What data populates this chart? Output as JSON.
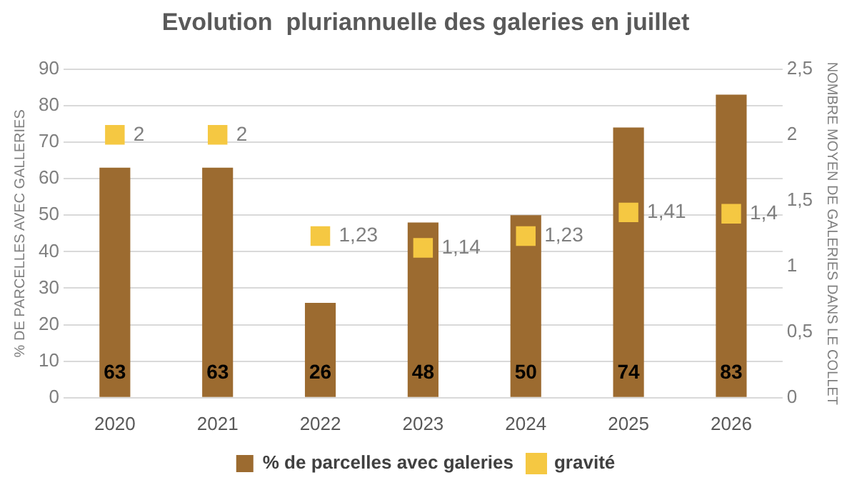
{
  "chart_data": {
    "type": "bar",
    "title": "Evolution  pluriannuelle des galeries en juillet",
    "ylabel": "% DE PARCELLES AVEC GALLERIES",
    "y2label": "NOMBRE MOYEN DE GALERIES DANS LE COLLET",
    "categories": [
      "2020",
      "2021",
      "2022",
      "2023",
      "2024",
      "2025",
      "2026"
    ],
    "series": [
      {
        "name": "% de parcelles avec galeries",
        "color": "#9c6b30",
        "values": [
          63,
          63,
          26,
          48,
          50,
          74,
          83
        ],
        "data_labels": true
      },
      {
        "name": "gravité",
        "type": "scatter",
        "axis": "y2",
        "color": "#f5c842",
        "values": [
          2,
          2,
          1.23,
          1.14,
          1.23,
          1.41,
          1.4
        ],
        "value_labels": [
          "2",
          "2",
          "1,23",
          "1,14",
          "1,23",
          "1,41",
          "1,4"
        ]
      }
    ],
    "ylim": [
      0,
      90
    ],
    "yticks": [
      0,
      10,
      20,
      30,
      40,
      50,
      60,
      70,
      80,
      90
    ],
    "y2lim": [
      0,
      2.5
    ],
    "y2ticks": [
      0,
      {
        "value": 0.5,
        "label": "0,5"
      },
      1,
      {
        "value": 1.5,
        "label": "1,5"
      },
      2,
      {
        "value": 2.5,
        "label": "2,5"
      }
    ],
    "grid": "y",
    "legend": "bottom",
    "marker": "square"
  }
}
